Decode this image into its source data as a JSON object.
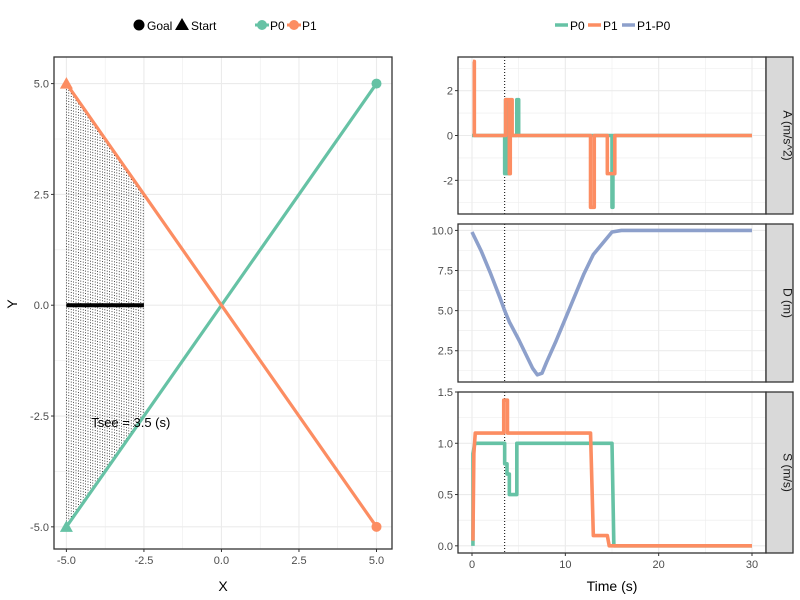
{
  "colors": {
    "P0": "#66c2a5",
    "P1": "#fc8d62",
    "P1-P0": "#8da0cb",
    "panel_bg": "#ffffff",
    "grid": "#ebebeb",
    "strip_bg": "#d9d9d9"
  },
  "chart_data": [
    {
      "type": "line",
      "xlabel": "X",
      "ylabel": "Y",
      "xlim": [
        -5.4,
        5.5
      ],
      "ylim": [
        -5.5,
        5.6
      ],
      "xticks": [
        -5.0,
        -2.5,
        0.0,
        2.5,
        5.0
      ],
      "xtick_labels": [
        "-5.0",
        "-2.5",
        "0.0",
        "2.5",
        "5.0"
      ],
      "yticks": [
        -5.0,
        -2.5,
        0.0,
        2.5,
        5.0
      ],
      "ytick_labels": [
        "-5.0",
        "-2.5",
        "0.0",
        "2.5",
        "5.0"
      ],
      "grid": true,
      "legend_shapes": {
        "position": "top-left",
        "entries": [
          "Goal",
          "Start"
        ]
      },
      "legend_series": {
        "position": "top-left",
        "entries": [
          "P0",
          "P1"
        ]
      },
      "series": [
        {
          "name": "P0",
          "x": [
            -5,
            5
          ],
          "y": [
            -5,
            5
          ],
          "start": [
            -5,
            -5
          ],
          "goal": [
            5,
            5
          ]
        },
        {
          "name": "P1",
          "x": [
            -5,
            5
          ],
          "y": [
            5,
            -5
          ],
          "start": [
            -5,
            5
          ],
          "goal": [
            5,
            -5
          ]
        }
      ],
      "visible_region": {
        "x_left": -5.0,
        "x_right": -2.5,
        "y_top": [
          5.0,
          2.5
        ],
        "y_bottom": [
          -5.0,
          -2.5
        ]
      },
      "black_segment": {
        "x": [
          -5.0,
          -2.5
        ],
        "y": 0.0
      },
      "annotation": "Tsee = 3.5 (s)",
      "annotation_pos": [
        -4.2,
        -2.75
      ]
    },
    {
      "type": "line",
      "facet_panel": "A",
      "strip_label": "A (m/s^2)",
      "xlim": [
        -1.5,
        31.5
      ],
      "ylim": [
        -3.5,
        3.5
      ],
      "yticks": [
        -2,
        0,
        2
      ],
      "ytick_labels": [
        "-2",
        "0",
        "2"
      ],
      "vline_x": 3.5,
      "series": [
        {
          "name": "P0",
          "x": [
            0,
            3.5,
            3.5,
            3.6,
            3.6,
            3.75,
            3.75,
            4.0,
            4.0,
            4.8,
            4.8,
            5.0,
            5.0,
            15.0,
            15.0,
            15.1,
            15.1,
            30
          ],
          "y": [
            0,
            0,
            -1.7,
            -1.7,
            1.6,
            1.6,
            -1.7,
            -1.7,
            0,
            0,
            1.6,
            1.6,
            0,
            0,
            -3.2,
            -3.2,
            0,
            0
          ]
        },
        {
          "name": "P1",
          "x": [
            0.1,
            0.1,
            0.25,
            0.25,
            3.6,
            3.6,
            4.0,
            4.0,
            4.1,
            4.1,
            4.3,
            4.3,
            12.7,
            12.7,
            13.1,
            13.1,
            14.5,
            14.5,
            15.3,
            15.3,
            30
          ],
          "y": [
            3.3,
            3.3,
            3.3,
            0,
            0,
            1.6,
            1.6,
            -1.7,
            -1.7,
            1.6,
            1.6,
            0,
            0,
            -3.2,
            -3.2,
            0,
            0,
            -1.7,
            -1.7,
            0,
            0
          ]
        }
      ]
    },
    {
      "type": "line",
      "facet_panel": "D",
      "strip_label": "D (m)",
      "xlim": [
        -1.5,
        31.5
      ],
      "ylim": [
        0.55,
        10.4
      ],
      "yticks": [
        2.5,
        5.0,
        7.5,
        10.0
      ],
      "ytick_labels": [
        "2.5",
        "5.0",
        "7.5",
        "10.0"
      ],
      "vline_x": 3.5,
      "series": [
        {
          "name": "P1-P0",
          "x": [
            0,
            1,
            2,
            3,
            3.5,
            4,
            5,
            6,
            6.5,
            7,
            7.5,
            8,
            9,
            10,
            11,
            12,
            13,
            14,
            15,
            16,
            20,
            25,
            30
          ],
          "y": [
            9.9,
            8.7,
            7.3,
            5.8,
            5.0,
            4.3,
            3.2,
            2.0,
            1.4,
            1.0,
            1.1,
            1.8,
            3.1,
            4.5,
            5.9,
            7.3,
            8.5,
            9.2,
            9.9,
            10.0,
            10.0,
            10.0,
            10.0
          ]
        }
      ]
    },
    {
      "type": "line",
      "facet_panel": "S",
      "strip_label": "S (m/s)",
      "xlabel": "Time (s)",
      "xlim": [
        -1.5,
        31.5
      ],
      "ylim": [
        -0.07,
        1.5
      ],
      "xticks": [
        0,
        10,
        20,
        30
      ],
      "xtick_labels": [
        "0",
        "10",
        "20",
        "30"
      ],
      "yticks": [
        0.0,
        0.5,
        1.0,
        1.5
      ],
      "ytick_labels": [
        "0.0",
        "0.5",
        "1.0",
        "1.5"
      ],
      "vline_x": 3.5,
      "legend_series": {
        "position": "top",
        "entries": [
          "P0",
          "P1",
          "P1-P0"
        ]
      },
      "series": [
        {
          "name": "P0",
          "x": [
            0.1,
            0.1,
            0.3,
            3.5,
            3.5,
            3.75,
            3.75,
            4.0,
            4.0,
            4.8,
            4.8,
            15.0,
            15.2,
            30
          ],
          "y": [
            0.0,
            0.9,
            1.0,
            1.0,
            0.8,
            0.8,
            0.7,
            0.7,
            0.5,
            0.5,
            1.0,
            1.0,
            0.0,
            0.0
          ]
        },
        {
          "name": "P1",
          "x": [
            0.1,
            0.2,
            0.35,
            3.4,
            3.4,
            3.8,
            3.8,
            12.7,
            13.0,
            14.5,
            14.7,
            30
          ],
          "y": [
            0.05,
            0.9,
            1.1,
            1.1,
            1.42,
            1.42,
            1.1,
            1.1,
            0.1,
            0.1,
            0.0,
            0.0
          ]
        }
      ]
    }
  ]
}
